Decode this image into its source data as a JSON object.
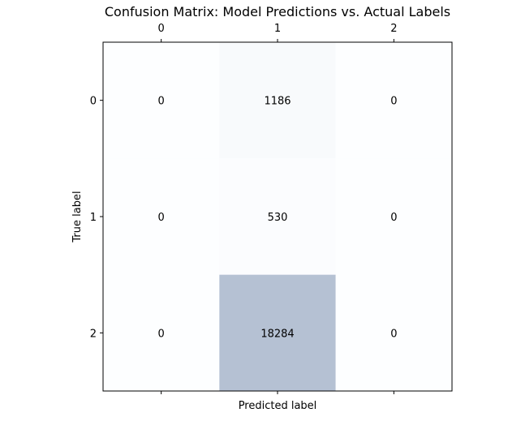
{
  "chart_data": {
    "type": "heatmap",
    "title": "Confusion Matrix: Model Predictions vs. Actual Labels",
    "xlabel": "Predicted label",
    "ylabel": "True label",
    "x_categories": [
      "0",
      "1",
      "2"
    ],
    "y_categories": [
      "0",
      "1",
      "2"
    ],
    "x_tick_position": "top",
    "matrix": [
      [
        0,
        1186,
        0
      ],
      [
        0,
        530,
        0
      ],
      [
        0,
        18284,
        0
      ]
    ],
    "colormap": "Blues (alpha 0.3)",
    "colors": {
      "low": "#F7FBFF",
      "high": "#08306B",
      "cell_alpha": 0.3,
      "axis": "#000000",
      "text": "#000000"
    },
    "grid": false
  }
}
